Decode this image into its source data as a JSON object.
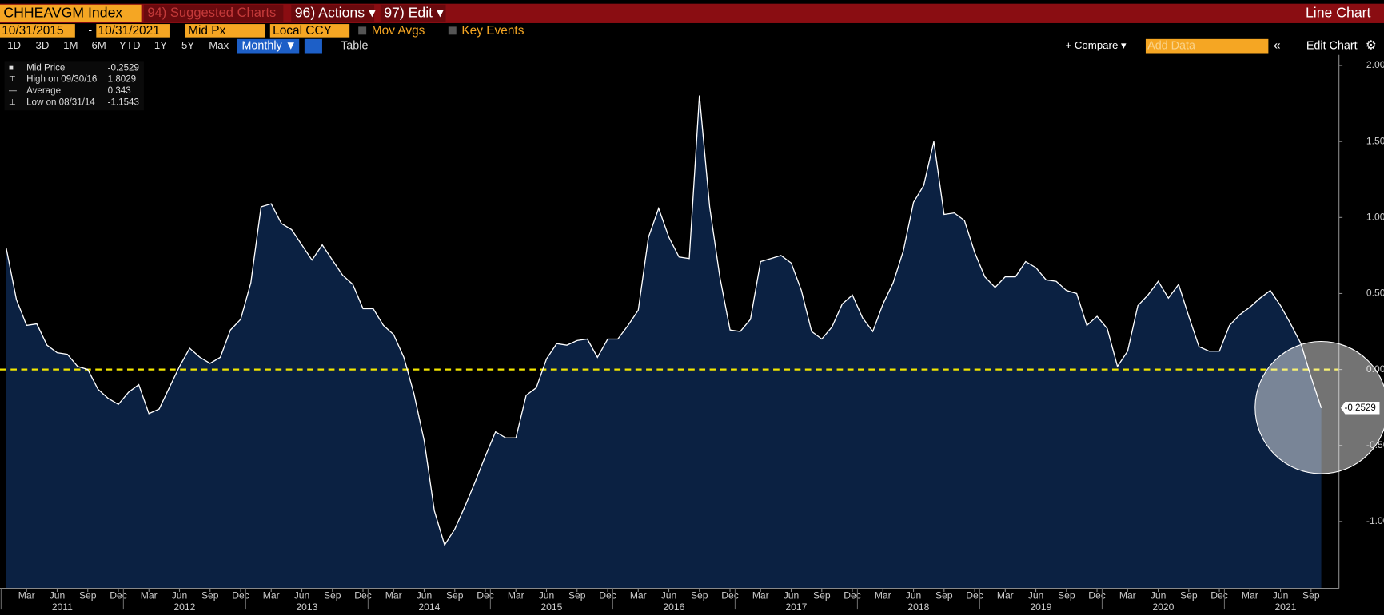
{
  "toolbar": {
    "ticker": "CHHEAVGM Index",
    "suggested": "94) Suggested Charts",
    "actions": "96) Actions ▾",
    "edit": "97) Edit ▾",
    "chart_kind": "Line Chart",
    "start_date": "10/31/2015",
    "date_sep": "-",
    "end_date": "10/31/2021",
    "field": "Mid Px",
    "currency": "Local CCY",
    "mov_avgs": "Mov Avgs",
    "key_events": "Key Events",
    "periods": [
      "1D",
      "3D",
      "1M",
      "6M",
      "YTD",
      "1Y",
      "5Y",
      "Max"
    ],
    "frequency": "Monthly ▼",
    "table": "Table",
    "compare": "+ Compare ▾",
    "add_data": "Add Data",
    "edit_chart": "Edit Chart"
  },
  "chart_data": {
    "type": "area-line",
    "legend_rows": [
      [
        "Mid Price",
        "-0.2529"
      ],
      [
        "High on 09/30/16",
        "1.8029"
      ],
      [
        "Average",
        "0.343"
      ],
      [
        "Low on 08/31/14",
        "-1.1543"
      ]
    ],
    "last_value_label": "-0.2529",
    "categories": [
      null,
      null,
      "Mar",
      null,
      null,
      "Jun",
      null,
      null,
      "Sep",
      null,
      null,
      "Dec",
      null,
      null,
      "Mar",
      null,
      null,
      "Jun",
      null,
      null,
      "Sep",
      null,
      null,
      "Dec",
      null,
      null,
      "Mar",
      null,
      null,
      "Jun",
      null,
      null,
      "Sep",
      null,
      null,
      "Dec",
      null,
      null,
      "Mar",
      null,
      null,
      "Jun",
      null,
      null,
      "Sep",
      null,
      null,
      "Dec",
      null,
      null,
      "Mar",
      null,
      null,
      "Jun",
      null,
      null,
      "Sep",
      null,
      null,
      "Dec",
      null,
      null,
      "Mar",
      null,
      null,
      "Jun",
      null,
      null,
      "Sep",
      null,
      null,
      "Dec",
      null,
      null,
      "Mar",
      null,
      null,
      "Jun",
      null,
      null,
      "Sep",
      null,
      null,
      "Dec",
      null,
      null,
      "Mar",
      null,
      null,
      "Jun",
      null,
      null,
      "Sep",
      null,
      null,
      "Dec",
      null,
      null,
      "Mar",
      null,
      null,
      "Jun",
      null,
      null,
      "Sep",
      null,
      null,
      "Dec",
      null,
      null,
      "Mar",
      null,
      null,
      "Jun",
      null,
      null,
      "Sep",
      null,
      null,
      "Dec",
      null,
      null,
      "Mar",
      null,
      null,
      "Jun",
      null,
      null,
      "Sep",
      null
    ],
    "years": [
      "2011",
      "2012",
      "2013",
      "2014",
      "2015",
      "2016",
      "2017",
      "2018",
      "2019",
      "2020",
      "2021"
    ],
    "values": [
      0.8,
      0.46,
      0.29,
      0.3,
      0.16,
      0.11,
      0.1,
      0.02,
      0.0,
      -0.13,
      -0.19,
      -0.23,
      -0.15,
      -0.1,
      -0.29,
      -0.26,
      -0.12,
      0.02,
      0.14,
      0.08,
      0.04,
      0.08,
      0.26,
      0.33,
      0.57,
      1.07,
      1.09,
      0.96,
      0.92,
      0.82,
      0.72,
      0.82,
      0.72,
      0.62,
      0.56,
      0.4,
      0.4,
      0.29,
      0.23,
      0.08,
      -0.16,
      -0.47,
      -0.93,
      -1.1543,
      -1.05,
      -0.9,
      -0.74,
      -0.57,
      -0.41,
      -0.45,
      -0.45,
      -0.17,
      -0.12,
      0.07,
      0.17,
      0.16,
      0.19,
      0.2,
      0.08,
      0.2,
      0.2,
      0.29,
      0.39,
      0.87,
      1.06,
      0.87,
      0.74,
      0.73,
      1.8029,
      1.07,
      0.61,
      0.26,
      0.25,
      0.33,
      0.71,
      0.73,
      0.75,
      0.7,
      0.52,
      0.25,
      0.2,
      0.28,
      0.43,
      0.49,
      0.34,
      0.25,
      0.43,
      0.57,
      0.78,
      1.1,
      1.21,
      1.5,
      1.02,
      1.03,
      0.98,
      0.77,
      0.61,
      0.54,
      0.61,
      0.61,
      0.71,
      0.67,
      0.59,
      0.58,
      0.52,
      0.5,
      0.29,
      0.35,
      0.27,
      0.02,
      0.12,
      0.42,
      0.49,
      0.58,
      0.47,
      0.56,
      0.35,
      0.15,
      0.12,
      0.12,
      0.29,
      0.36,
      0.41,
      0.47,
      0.52,
      0.42,
      0.3,
      0.17,
      -0.05,
      -0.2529
    ],
    "line_color": "#ffffff",
    "fill_color": "#0b2142",
    "reference_line": 0,
    "reference_color": "#f2e600",
    "ylim": [
      -1.44,
      2.07
    ],
    "yticks": [
      {
        "value": 2,
        "label": "2.00"
      },
      {
        "value": 1.5,
        "label": "1.50"
      },
      {
        "value": 1,
        "label": "1.00"
      },
      {
        "value": 0.5,
        "label": "0.50"
      },
      {
        "value": 0,
        "label": "0.00"
      },
      {
        "value": -0.5,
        "label": "-0.50"
      },
      {
        "value": -1,
        "label": "-1.00"
      }
    ]
  }
}
